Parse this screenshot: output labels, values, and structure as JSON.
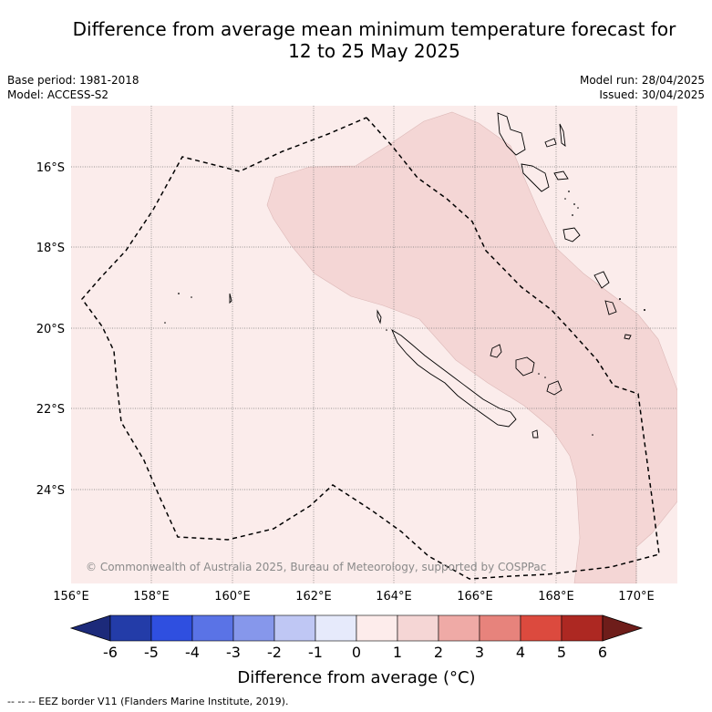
{
  "header": {
    "title_line1": "Difference from average mean minimum temperature forecast for",
    "title_line2": "12 to 25 May 2025",
    "base_period": "Base period: 1981-2018",
    "model": "Model: ACCESS-S2",
    "model_run": "Model run: 28/04/2025",
    "issued": "Issued: 30/04/2025"
  },
  "map": {
    "latitude_labels": [
      "16°S",
      "18°S",
      "20°S",
      "22°S",
      "24°S"
    ],
    "longitude_labels": [
      "156°E",
      "158°E",
      "160°E",
      "162°E",
      "164°E",
      "166°E",
      "168°E",
      "170°E"
    ],
    "copyright": "© Commonwealth of Australia 2025, Bureau of Meteorology, supported by COSPPac",
    "background_color": "#fbeceb",
    "anomaly_band_color": "#f4d6d5"
  },
  "colorbar": {
    "ticks": [
      "-6",
      "-5",
      "-4",
      "-3",
      "-2",
      "-1",
      "0",
      "1",
      "2",
      "3",
      "4",
      "5",
      "6"
    ],
    "colors": [
      "#233ca8",
      "#2f4fe0",
      "#5a73e6",
      "#8697eb",
      "#bfc7f4",
      "#e6eafb",
      "#fdeceb",
      "#f5d6d5",
      "#efaaa6",
      "#e7837c",
      "#dc4a3e",
      "#ad2822"
    ],
    "low_extend_color": "#1c2a7a",
    "high_extend_color": "#6e1d1a",
    "title": "Difference from average (°C)"
  },
  "footer": {
    "legend_text": "--  --  -- EEZ border V11 (Flanders Marine Institute, 2019)."
  }
}
